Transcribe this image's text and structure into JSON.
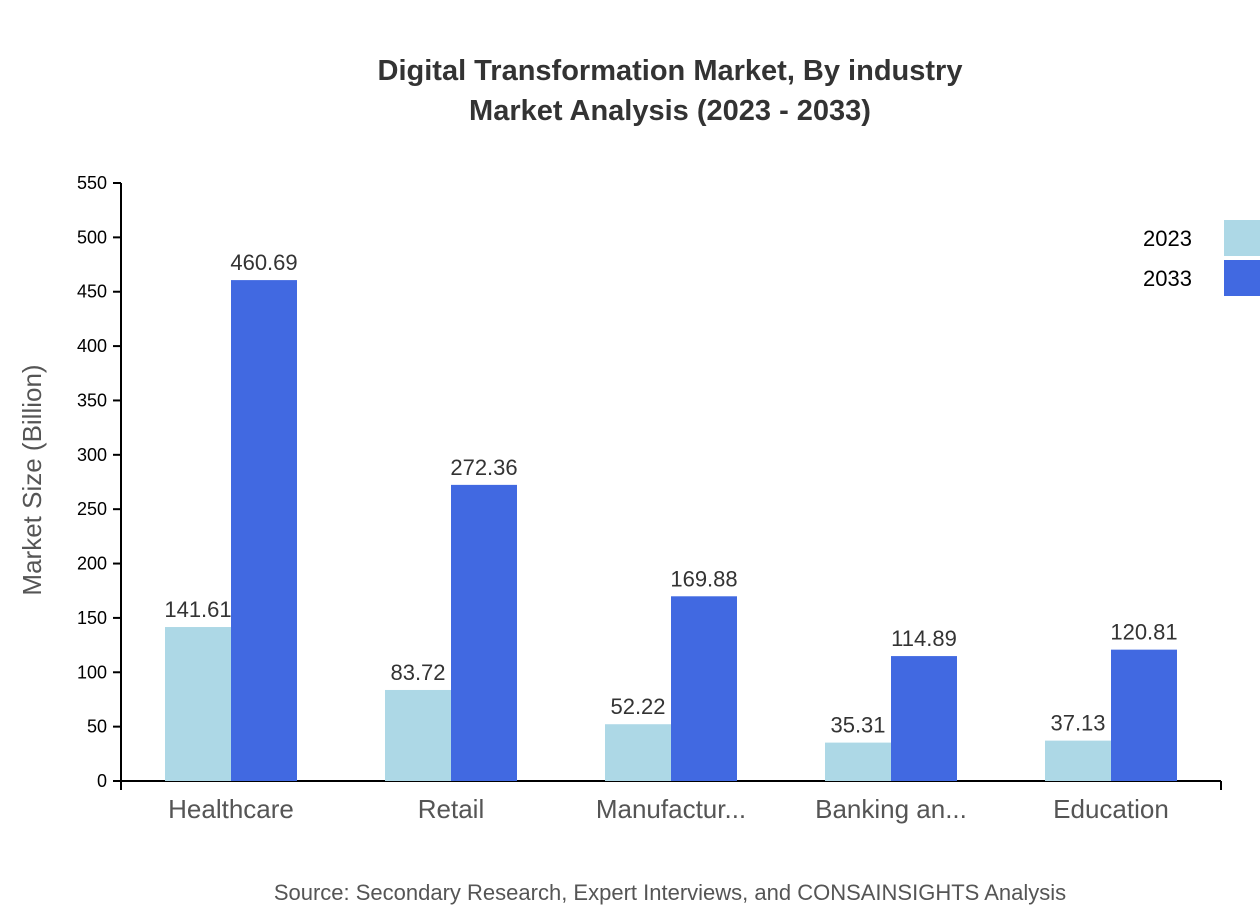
{
  "chart_data": {
    "type": "bar",
    "title": "Digital Transformation Market, By industry",
    "subtitle": "Market Analysis (2023 - 2033)",
    "xlabel": "",
    "ylabel": "Market Size (Billion)",
    "ylim": [
      0,
      550
    ],
    "yticks": [
      0,
      50,
      100,
      150,
      200,
      250,
      300,
      350,
      400,
      450,
      500,
      550
    ],
    "categories": [
      "Healthcare",
      "Retail",
      "Manufactur...",
      "Banking an...",
      "Education"
    ],
    "series": [
      {
        "name": "2023",
        "color": "#add8e6",
        "values": [
          141.61,
          83.72,
          52.22,
          35.31,
          37.13
        ]
      },
      {
        "name": "2033",
        "color": "#4169e1",
        "values": [
          460.69,
          272.36,
          169.88,
          114.89,
          120.81
        ]
      }
    ],
    "legend_position": "top-right",
    "grid": false,
    "source": "Source: Secondary Research, Expert Interviews, and CONSAINSIGHTS Analysis"
  }
}
